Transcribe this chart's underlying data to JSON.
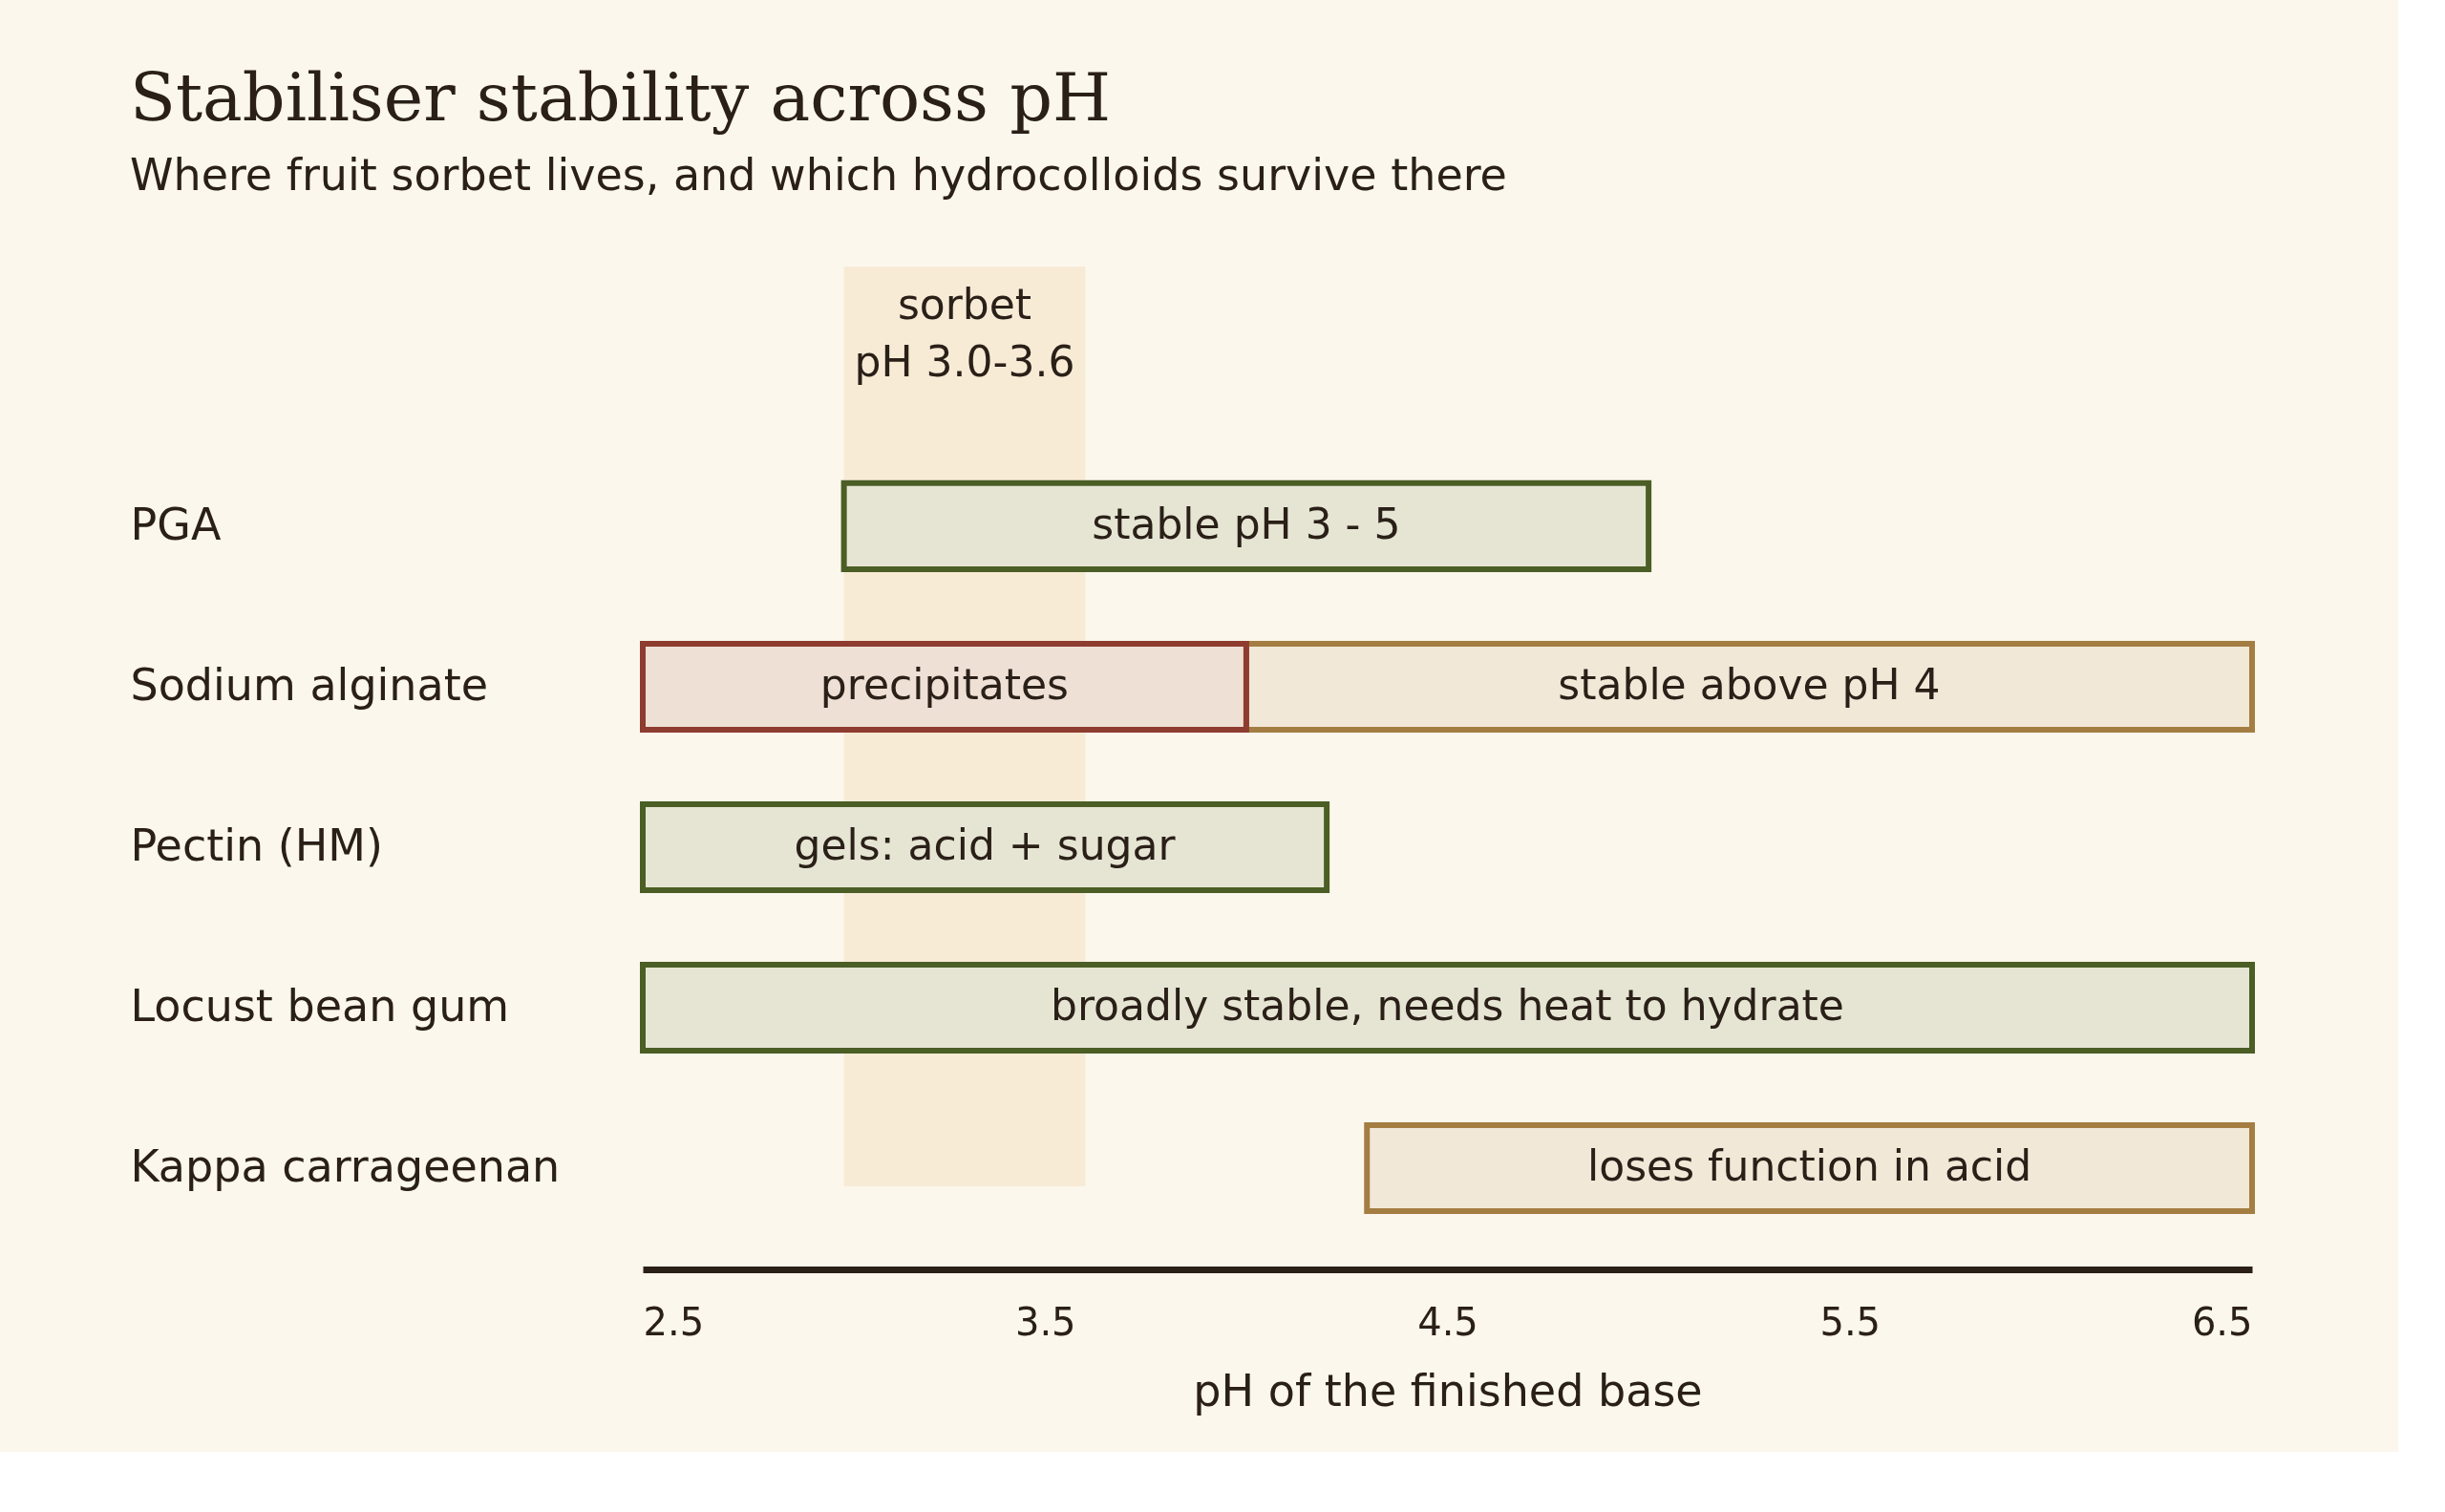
{
  "chart_data": {
    "type": "bar",
    "orientation": "horizontal",
    "title": "Stabiliser stability across pH",
    "subtitle": "Where fruit sorbet lives, and which hydrocolloids survive there",
    "xlabel": "pH of the finished base",
    "categories": [
      "PGA",
      "Sodium alginate",
      "Pectin (HM)",
      "Locust bean gum",
      "Kappa carrageenan"
    ],
    "series": [
      {
        "color": "#4b5e25",
        "values": [
          2.0,
          null,
          1.7,
          4.0,
          null
        ],
        "base": [
          3.0,
          null,
          2.5,
          2.5,
          null
        ],
        "value_labels": [
          "stable pH 3 - 5",
          null,
          "gels: acid + sugar",
          "broadly stable, needs heat to hydrate",
          null
        ]
      },
      {
        "color": "#a47d42",
        "values": [
          null,
          2.5,
          null,
          null,
          2.2
        ],
        "base": [
          null,
          4.0,
          null,
          null,
          4.3
        ],
        "value_labels": [
          null,
          "stable above pH 4",
          null,
          null,
          "loses function in acid"
        ]
      },
      {
        "color": "#8e3b30",
        "values": [
          null,
          1.5,
          null,
          null,
          null
        ],
        "base": [
          null,
          2.5,
          null,
          null,
          null
        ],
        "value_labels": [
          null,
          "precipitates",
          null,
          null,
          null
        ]
      }
    ],
    "bands": [
      {
        "axis": "x",
        "from": 3.0,
        "to": 3.6,
        "label": "sorbet\npH 3.0-3.6",
        "color": "#f8ebd6"
      }
    ],
    "xlim": [
      2.5,
      6.5
    ],
    "xticks": [
      2.5,
      3.5,
      4.5,
      5.5,
      6.5
    ],
    "grid": false
  }
}
